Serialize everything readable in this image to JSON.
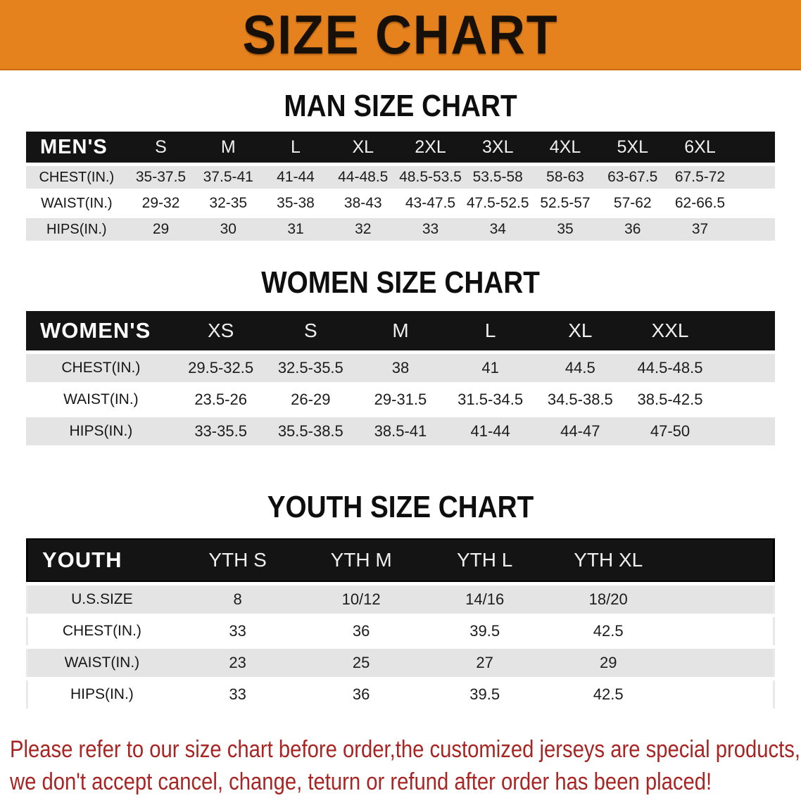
{
  "banner": {
    "title": "SIZE CHART"
  },
  "colors": {
    "banner_bg": "#E5821D",
    "table_header_bg": "#141414",
    "row_stripe": "#E4E4E4",
    "footer_text": "#A82523"
  },
  "sections": [
    {
      "heading": "MAN SIZE CHART",
      "table": {
        "label": "MEN'S",
        "columns": [
          "S",
          "M",
          "L",
          "XL",
          "2XL",
          "3XL",
          "4XL",
          "5XL",
          "6XL"
        ],
        "rows": [
          {
            "label": "CHEST(IN.)",
            "values": [
              "35-37.5",
              "37.5-41",
              "41-44",
              "44-48.5",
              "48.5-53.5",
              "53.5-58",
              "58-63",
              "63-67.5",
              "67.5-72"
            ]
          },
          {
            "label": "WAIST(IN.)",
            "values": [
              "29-32",
              "32-35",
              "35-38",
              "38-43",
              "43-47.5",
              "47.5-52.5",
              "52.5-57",
              "57-62",
              "62-66.5"
            ]
          },
          {
            "label": "HIPS(IN.)",
            "values": [
              "29",
              "30",
              "31",
              "32",
              "33",
              "34",
              "35",
              "36",
              "37"
            ]
          }
        ]
      }
    },
    {
      "heading": "WOMEN SIZE CHART",
      "table": {
        "label": "WOMEN'S",
        "columns": [
          "XS",
          "S",
          "M",
          "L",
          "XL",
          "XXL"
        ],
        "rows": [
          {
            "label": "CHEST(IN.)",
            "values": [
              "29.5-32.5",
              "32.5-35.5",
              "38",
              "41",
              "44.5",
              "44.5-48.5"
            ]
          },
          {
            "label": "WAIST(IN.)",
            "values": [
              "23.5-26",
              "26-29",
              "29-31.5",
              "31.5-34.5",
              "34.5-38.5",
              "38.5-42.5"
            ]
          },
          {
            "label": "HIPS(IN.)",
            "values": [
              "33-35.5",
              "35.5-38.5",
              "38.5-41",
              "41-44",
              "44-47",
              "47-50"
            ]
          }
        ]
      }
    },
    {
      "heading": "YOUTH SIZE CHART",
      "table": {
        "label": "YOUTH",
        "columns": [
          "YTH S",
          "YTH M",
          "YTH L",
          "YTH XL"
        ],
        "rows": [
          {
            "label": "U.S.SIZE",
            "values": [
              "8",
              "10/12",
              "14/16",
              "18/20"
            ]
          },
          {
            "label": "CHEST(IN.)",
            "values": [
              "33",
              "36",
              "39.5",
              "42.5"
            ]
          },
          {
            "label": "WAIST(IN.)",
            "values": [
              "23",
              "25",
              "27",
              "29"
            ]
          },
          {
            "label": "HIPS(IN.)",
            "values": [
              "33",
              "36",
              "39.5",
              "42.5"
            ]
          }
        ]
      }
    }
  ],
  "footer": {
    "line1": "Please refer to our size chart before order,the customized jerseys are special products,",
    "line2": "we don't accept cancel, change, teturn or refund after order has been placed!"
  }
}
